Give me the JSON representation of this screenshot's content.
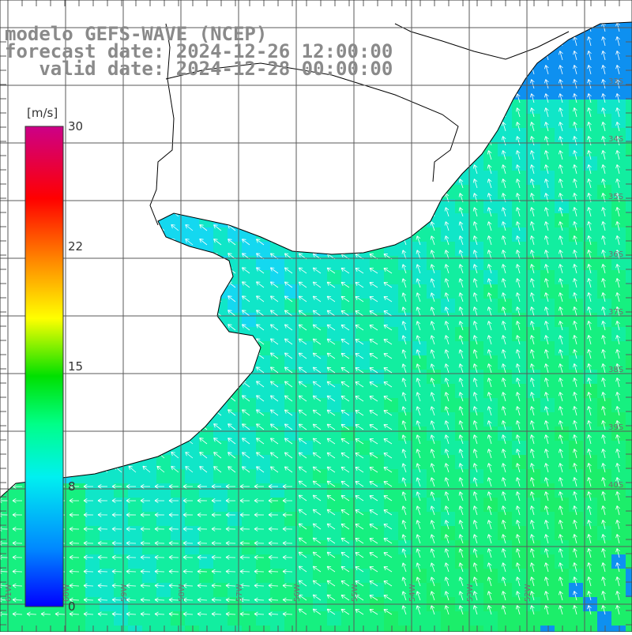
{
  "header": {
    "line1": "modelo GEFS-WAVE (NCEP)",
    "line2": "forecast date: 2024-12-26 12:00:00",
    "line3": "   valid date: 2024-12-28 00:00:00"
  },
  "colorbar": {
    "unit": "[m/s]",
    "ticks": [
      "30",
      "22",
      "15",
      "8",
      "0"
    ],
    "colors": [
      "#0000ff",
      "#0088ff",
      "#00ddff",
      "#00ff66",
      "#00dd00",
      "#ffff00",
      "#ff8800",
      "#ff0000",
      "#cc0088"
    ]
  },
  "map": {
    "latitude_labels": [
      "33S",
      "34S",
      "35S",
      "36S",
      "37S",
      "38S",
      "39S",
      "40S"
    ],
    "longitude_labels": [
      "61W",
      "60W",
      "59W",
      "58W",
      "57W",
      "56W",
      "55W",
      "54W",
      "53W",
      "52W"
    ],
    "land_color": "#ffffff",
    "grid_color": "#606060"
  }
}
